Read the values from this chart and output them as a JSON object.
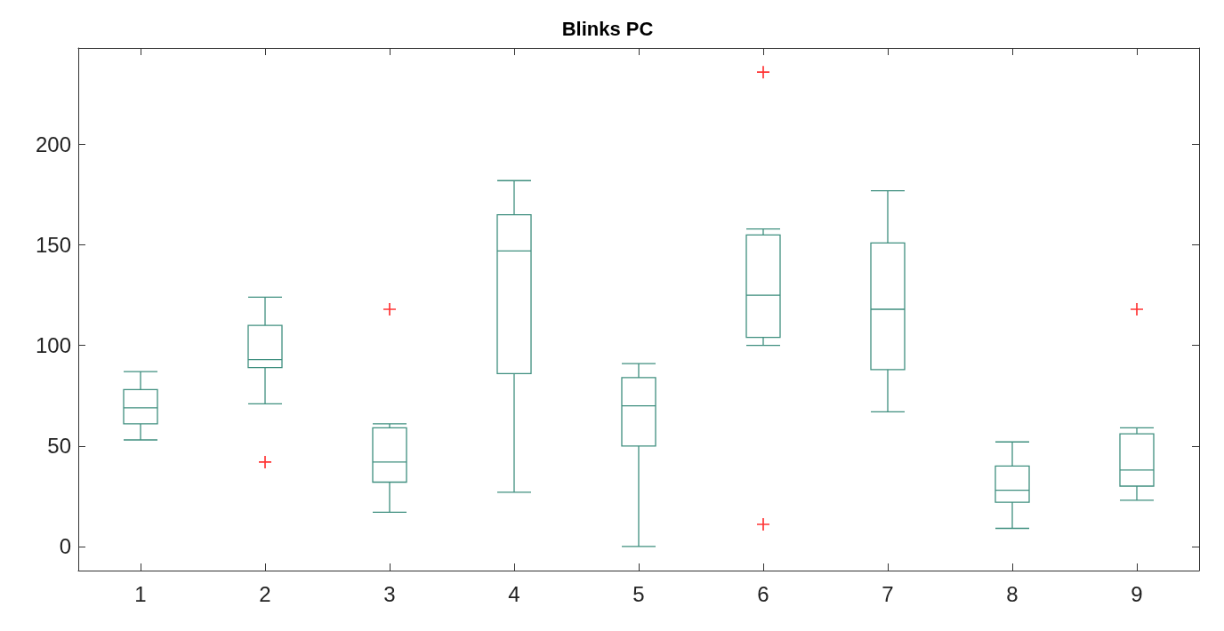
{
  "chart_data": {
    "type": "box",
    "title": "Blinks PC",
    "categories": [
      "1",
      "2",
      "3",
      "4",
      "5",
      "6",
      "7",
      "8",
      "9"
    ],
    "series": [
      {
        "color": "#3f8f7f",
        "boxes": [
          {
            "low": 53,
            "q1": 61,
            "median": 69,
            "q3": 78,
            "high": 87
          },
          {
            "low": 71,
            "q1": 89,
            "median": 93,
            "q3": 110,
            "high": 124
          },
          {
            "low": 17,
            "q1": 32,
            "median": 42,
            "q3": 59,
            "high": 61
          },
          {
            "low": 27,
            "q1": 86,
            "median": 147,
            "q3": 165,
            "high": 182
          },
          {
            "low": 0,
            "q1": 50,
            "median": 70,
            "q3": 84,
            "high": 91
          },
          {
            "low": 100,
            "q1": 104,
            "median": 125,
            "q3": 155,
            "high": 158
          },
          {
            "low": 67,
            "q1": 88,
            "median": 118,
            "q3": 151,
            "high": 177
          },
          {
            "low": 9,
            "q1": 22,
            "median": 28,
            "q3": 40,
            "high": 52
          },
          {
            "low": 23,
            "q1": 30,
            "median": 38,
            "q3": 56,
            "high": 59
          }
        ]
      },
      {
        "type": "scatter",
        "color": "#ff0000",
        "x": [
          "2",
          "3",
          "6",
          "6",
          "9"
        ],
        "values": [
          42,
          118,
          236,
          11,
          118
        ]
      }
    ],
    "ylim": [
      -12,
      248
    ],
    "yticks": [
      0,
      50,
      100,
      150,
      200
    ],
    "marker": "cross",
    "grid": false
  }
}
